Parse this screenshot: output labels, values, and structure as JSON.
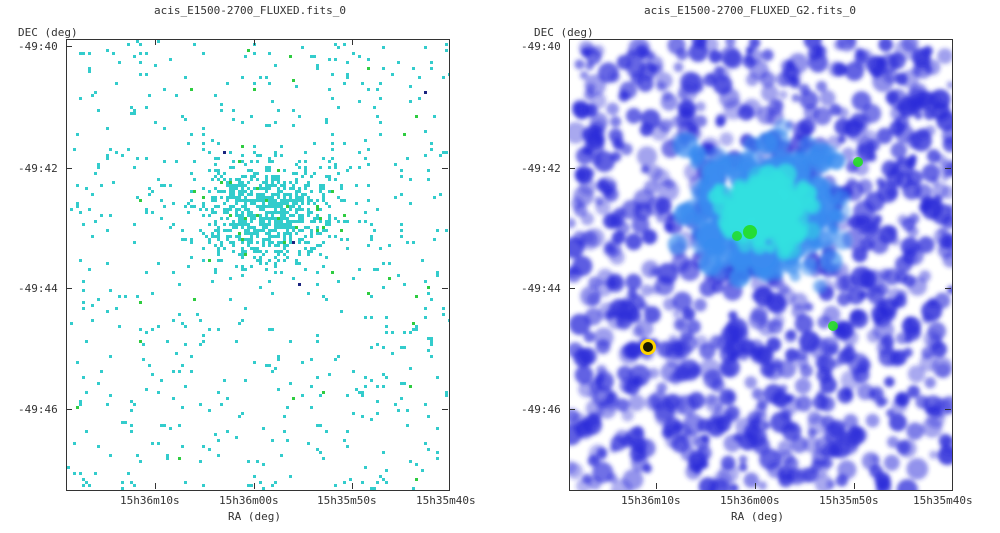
{
  "panels": [
    {
      "id": "left",
      "title": "acis_E1500-2700_FLUXED.fits_0",
      "y_axis_label": "DEC (deg)",
      "x_axis_label": "RA (deg)",
      "y_ticks": [
        "-49:40",
        "-49:42",
        "-49:44",
        "-49:46"
      ],
      "x_ticks": [
        "15h36m10s",
        "15h36m00s",
        "15h35m50s",
        "15h35m40s"
      ],
      "image_style": "sparse-pixels",
      "colors": {
        "primary": "#33cccc",
        "secondary": "#2ecc40",
        "rare": "#1a237e"
      }
    },
    {
      "id": "right",
      "title": "acis_E1500-2700_FLUXED_G2.fits_0",
      "y_axis_label": "DEC (deg)",
      "x_axis_label": "RA (deg)",
      "y_ticks": [
        "-49:40",
        "-49:42",
        "-49:44",
        "-49:46"
      ],
      "x_ticks": [
        "15h36m10s",
        "15h36m00s",
        "15h35m50s",
        "15h35m40s"
      ],
      "image_style": "smoothed-blobs",
      "colors": {
        "low": "#2b2bd9",
        "mid": "#3a8cf0",
        "high": "#33e0e0",
        "peak": "#22dd22",
        "point_source": "#1a1a00"
      }
    }
  ]
}
